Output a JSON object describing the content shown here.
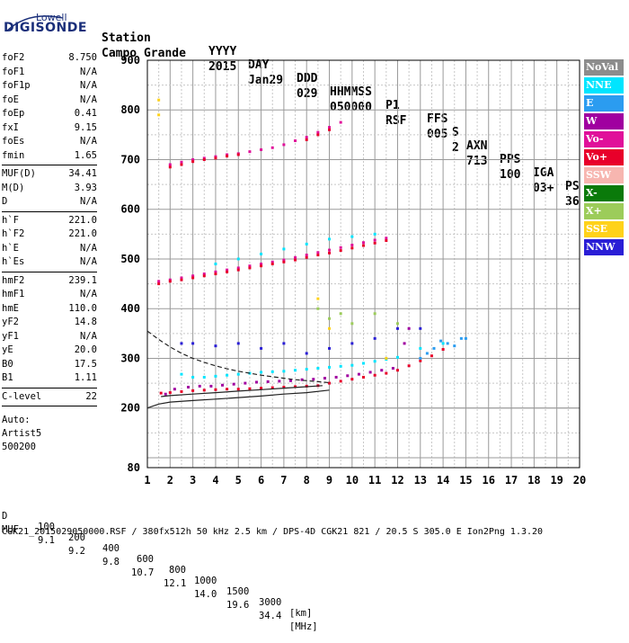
{
  "logo": {
    "line1": "Lowell",
    "line2": "DIGISONDE"
  },
  "header": {
    "labels": [
      "Station",
      "YYYY",
      "DAY",
      "DDD",
      "HHMMSS",
      "P1",
      "FFS",
      "S",
      "AXN",
      "PPS",
      "IGA",
      "PS"
    ],
    "values": [
      "Campo Grande",
      "2015",
      "Jan29",
      "029",
      "050000",
      "RSF",
      "005",
      "2",
      "713",
      "100",
      "03+",
      "36"
    ]
  },
  "params": [
    {
      "group": [
        {
          "label": "foF2",
          "value": "8.750"
        },
        {
          "label": "foF1",
          "value": "N/A"
        },
        {
          "label": "foF1p",
          "value": "N/A"
        },
        {
          "label": "foE",
          "value": "N/A"
        },
        {
          "label": "foEp",
          "value": "0.41"
        },
        {
          "label": "fxI",
          "value": "9.15"
        },
        {
          "label": "foEs",
          "value": "N/A"
        },
        {
          "label": "fmin",
          "value": "1.65"
        }
      ]
    },
    {
      "group": [
        {
          "label": "MUF(D)",
          "value": "34.41"
        },
        {
          "label": "M(D)",
          "value": "3.93"
        },
        {
          "label": "D",
          "value": "N/A"
        }
      ]
    },
    {
      "group": [
        {
          "label": "h`F",
          "value": "221.0"
        },
        {
          "label": "h`F2",
          "value": "221.0"
        },
        {
          "label": "h`E",
          "value": "N/A"
        },
        {
          "label": "h`Es",
          "value": "N/A"
        }
      ]
    },
    {
      "group": [
        {
          "label": "hmF2",
          "value": "239.1"
        },
        {
          "label": "hmF1",
          "value": "N/A"
        },
        {
          "label": "hmE",
          "value": "110.0"
        },
        {
          "label": "yF2",
          "value": "14.8"
        },
        {
          "label": "yF1",
          "value": "N/A"
        },
        {
          "label": "yE",
          "value": "20.0"
        },
        {
          "label": "B0",
          "value": "17.5"
        },
        {
          "label": "B1",
          "value": "1.11"
        }
      ]
    },
    {
      "group": [
        {
          "label": "C-level",
          "value": "22"
        }
      ]
    }
  ],
  "auto": {
    "line1": "Auto:",
    "line2": "Artist5",
    "line3": "500200"
  },
  "legend": [
    {
      "label": "NoVal",
      "color": "#8c8c8c"
    },
    {
      "label": "NNE",
      "color": "#00e5ff"
    },
    {
      "label": "E",
      "color": "#2b9cf0"
    },
    {
      "label": "W",
      "color": "#a000a0"
    },
    {
      "label": "Vo-",
      "color": "#e0109a"
    },
    {
      "label": "Vo+",
      "color": "#e8002a"
    },
    {
      "label": "SSW",
      "color": "#f7b6b0"
    },
    {
      "label": "X-",
      "color": "#0a7a0a"
    },
    {
      "label": "X+",
      "color": "#9ccc5a"
    },
    {
      "label": "SSE",
      "color": "#ffd21a"
    },
    {
      "label": "NNW",
      "color": "#2a1ed6"
    }
  ],
  "footer": {
    "d_label": "D",
    "d_values": [
      "100",
      "200",
      "400",
      "600",
      "800",
      "1000",
      "1500",
      "3000",
      "[km]"
    ],
    "muf_label": "MUF",
    "muf_values": [
      "9.1",
      "9.2",
      "9.8",
      "10.7",
      "12.1",
      "14.0",
      "19.6",
      "34.4",
      "[MHz]"
    ],
    "file_line": "CGK21_2015029050000.RSF / 380fx512h 50 kHz 2.5 km / DPS-4D CGK21 821 / 20.5 S 305.0 E Ion2Png 1.3.20"
  },
  "chart_data": {
    "type": "scatter",
    "xlim": [
      1,
      20
    ],
    "ylim": [
      80,
      900
    ],
    "x_ticks": [
      1,
      2,
      3,
      4,
      5,
      6,
      7,
      8,
      9,
      10,
      11,
      12,
      13,
      14,
      15,
      16,
      17,
      18,
      19,
      20
    ],
    "y_ticks": [
      80,
      200,
      300,
      400,
      500,
      600,
      700,
      800,
      900
    ],
    "grid": true,
    "legend_placement": "right",
    "series": [
      {
        "color": "#e8002a",
        "points": [
          [
            1.6,
            230
          ],
          [
            2.0,
            231
          ],
          [
            2.5,
            233
          ],
          [
            3.0,
            235
          ],
          [
            3.5,
            236
          ],
          [
            4.0,
            237
          ],
          [
            4.5,
            238
          ],
          [
            5.0,
            238
          ],
          [
            5.5,
            239
          ],
          [
            6.0,
            240
          ],
          [
            6.5,
            241
          ],
          [
            7.0,
            242
          ],
          [
            7.5,
            243
          ],
          [
            8.0,
            244
          ],
          [
            8.5,
            245
          ],
          [
            9.0,
            250
          ],
          [
            9.5,
            254
          ],
          [
            10.0,
            258
          ],
          [
            10.5,
            262
          ],
          [
            11.0,
            266
          ],
          [
            11.5,
            270
          ],
          [
            12.0,
            276
          ],
          [
            12.5,
            285
          ],
          [
            13.0,
            295
          ],
          [
            13.5,
            305
          ],
          [
            14.0,
            318
          ]
        ]
      },
      {
        "color": "#a000a0",
        "points": [
          [
            1.8,
            228
          ],
          [
            2.2,
            238
          ],
          [
            2.8,
            242
          ],
          [
            3.3,
            244
          ],
          [
            3.8,
            244
          ],
          [
            4.3,
            246
          ],
          [
            4.8,
            248
          ],
          [
            5.3,
            250
          ],
          [
            5.8,
            252
          ],
          [
            6.3,
            253
          ],
          [
            6.8,
            254
          ],
          [
            7.3,
            255
          ],
          [
            7.8,
            257
          ],
          [
            8.3,
            258
          ],
          [
            8.8,
            260
          ],
          [
            9.3,
            262
          ],
          [
            9.8,
            265
          ],
          [
            10.3,
            268
          ],
          [
            10.8,
            272
          ],
          [
            11.3,
            276
          ],
          [
            11.8,
            280
          ],
          [
            12.3,
            330
          ],
          [
            12.5,
            360
          ]
        ]
      },
      {
        "color": "#00e5ff",
        "points": [
          [
            2.5,
            268
          ],
          [
            3.0,
            262
          ],
          [
            3.5,
            262
          ],
          [
            4.0,
            264
          ],
          [
            4.5,
            266
          ],
          [
            5.0,
            268
          ],
          [
            5.5,
            270
          ],
          [
            6.0,
            272
          ],
          [
            6.5,
            273
          ],
          [
            7.0,
            274
          ],
          [
            7.5,
            276
          ],
          [
            8.0,
            278
          ],
          [
            8.5,
            280
          ],
          [
            9.0,
            282
          ],
          [
            9.5,
            284
          ],
          [
            10.0,
            286
          ],
          [
            10.5,
            290
          ],
          [
            11.0,
            294
          ],
          [
            11.5,
            298
          ],
          [
            12.0,
            302
          ],
          [
            13.0,
            320
          ],
          [
            14.0,
            330
          ]
        ]
      },
      {
        "color": "#2b9cf0",
        "points": [
          [
            13.0,
            300
          ],
          [
            13.3,
            310
          ],
          [
            13.6,
            320
          ],
          [
            13.9,
            335
          ],
          [
            14.2,
            330
          ],
          [
            14.5,
            325
          ],
          [
            14.8,
            340
          ],
          [
            15.0,
            340
          ]
        ]
      },
      {
        "color": "#e0109a",
        "points": [
          [
            1.5,
            455
          ],
          [
            2.0,
            458
          ],
          [
            2.5,
            462
          ],
          [
            3.0,
            466
          ],
          [
            3.5,
            470
          ],
          [
            4.0,
            474
          ],
          [
            4.5,
            478
          ],
          [
            5.0,
            482
          ],
          [
            5.5,
            486
          ],
          [
            6.0,
            490
          ],
          [
            6.5,
            494
          ],
          [
            7.0,
            498
          ],
          [
            7.5,
            503
          ],
          [
            8.0,
            508
          ],
          [
            8.5,
            513
          ],
          [
            9.0,
            518
          ],
          [
            9.5,
            523
          ],
          [
            10.0,
            528
          ],
          [
            10.5,
            533
          ],
          [
            11.0,
            538
          ],
          [
            11.5,
            542
          ]
        ]
      },
      {
        "color": "#e8002a",
        "points": [
          [
            1.5,
            450
          ],
          [
            2.0,
            455
          ],
          [
            2.5,
            458
          ],
          [
            3.0,
            462
          ],
          [
            3.5,
            466
          ],
          [
            4.0,
            470
          ],
          [
            4.5,
            474
          ],
          [
            5.0,
            478
          ],
          [
            5.5,
            482
          ],
          [
            6.0,
            486
          ],
          [
            6.5,
            490
          ],
          [
            7.0,
            494
          ],
          [
            7.5,
            498
          ],
          [
            8.0,
            503
          ],
          [
            8.5,
            508
          ],
          [
            9.0,
            512
          ],
          [
            9.5,
            517
          ],
          [
            10.0,
            522
          ],
          [
            10.5,
            527
          ],
          [
            11.0,
            532
          ],
          [
            11.5,
            537
          ]
        ]
      },
      {
        "color": "#00e5ff",
        "points": [
          [
            4.0,
            490
          ],
          [
            5.0,
            500
          ],
          [
            6.0,
            510
          ],
          [
            7.0,
            520
          ],
          [
            8.0,
            530
          ],
          [
            9.0,
            540
          ],
          [
            10.0,
            545
          ],
          [
            11.0,
            550
          ]
        ]
      },
      {
        "color": "#e0109a",
        "points": [
          [
            2.0,
            690
          ],
          [
            2.5,
            695
          ],
          [
            3.0,
            700
          ],
          [
            3.5,
            703
          ],
          [
            4.0,
            706
          ],
          [
            4.5,
            710
          ],
          [
            5.0,
            712
          ],
          [
            5.5,
            716
          ],
          [
            6.0,
            720
          ],
          [
            6.5,
            724
          ],
          [
            7.0,
            730
          ],
          [
            7.5,
            738
          ],
          [
            8.0,
            745
          ],
          [
            8.5,
            755
          ],
          [
            9.0,
            765
          ],
          [
            9.5,
            775
          ]
        ]
      },
      {
        "color": "#e8002a",
        "points": [
          [
            2.0,
            685
          ],
          [
            2.5,
            690
          ],
          [
            3.0,
            696
          ],
          [
            3.5,
            700
          ],
          [
            4.0,
            703
          ],
          [
            4.5,
            707
          ],
          [
            5.0,
            710
          ],
          [
            8.0,
            740
          ],
          [
            8.5,
            750
          ],
          [
            9.0,
            760
          ]
        ]
      },
      {
        "color": "#2a1ed6",
        "points": [
          [
            2.5,
            330
          ],
          [
            3.0,
            330
          ],
          [
            4.0,
            325
          ],
          [
            5.0,
            330
          ],
          [
            6.0,
            320
          ],
          [
            7.0,
            330
          ],
          [
            8.0,
            310
          ],
          [
            9.0,
            320
          ],
          [
            10.0,
            330
          ],
          [
            11.0,
            340
          ],
          [
            12.0,
            360
          ],
          [
            13.0,
            360
          ]
        ]
      },
      {
        "color": "#9ccc5a",
        "points": [
          [
            8.5,
            400
          ],
          [
            9.0,
            380
          ],
          [
            9.5,
            390
          ],
          [
            10.0,
            370
          ],
          [
            11.0,
            390
          ],
          [
            12.0,
            370
          ]
        ]
      },
      {
        "color": "#ffd21a",
        "points": [
          [
            1.5,
            790
          ],
          [
            1.5,
            820
          ],
          [
            8.5,
            420
          ],
          [
            9.0,
            360
          ],
          [
            11.5,
            300
          ]
        ]
      }
    ],
    "lines": [
      {
        "style": "dashed",
        "points": [
          [
            1.0,
            355
          ],
          [
            1.5,
            338
          ],
          [
            2.0,
            323
          ],
          [
            2.5,
            310
          ],
          [
            3.0,
            300
          ],
          [
            3.5,
            292
          ],
          [
            4.0,
            285
          ],
          [
            4.5,
            279
          ],
          [
            5.0,
            274
          ],
          [
            5.5,
            270
          ],
          [
            6.0,
            266
          ],
          [
            6.5,
            263
          ],
          [
            7.0,
            260
          ],
          [
            7.5,
            257
          ],
          [
            8.0,
            255
          ],
          [
            8.5,
            253
          ],
          [
            9.0,
            251
          ]
        ]
      },
      {
        "style": "solid",
        "points": [
          [
            1.0,
            200
          ],
          [
            1.5,
            208
          ],
          [
            2.0,
            212
          ],
          [
            3.0,
            215
          ],
          [
            4.0,
            218
          ],
          [
            5.0,
            221
          ],
          [
            6.0,
            224
          ],
          [
            7.0,
            228
          ],
          [
            8.0,
            231
          ],
          [
            9.0,
            236
          ]
        ]
      },
      {
        "style": "solid",
        "points": [
          [
            1.6,
            223
          ],
          [
            2.0,
            225
          ],
          [
            3.0,
            228
          ],
          [
            4.0,
            231
          ],
          [
            5.0,
            234
          ],
          [
            6.0,
            237
          ],
          [
            7.0,
            240
          ],
          [
            8.0,
            243
          ],
          [
            8.7,
            245
          ]
        ]
      }
    ]
  }
}
